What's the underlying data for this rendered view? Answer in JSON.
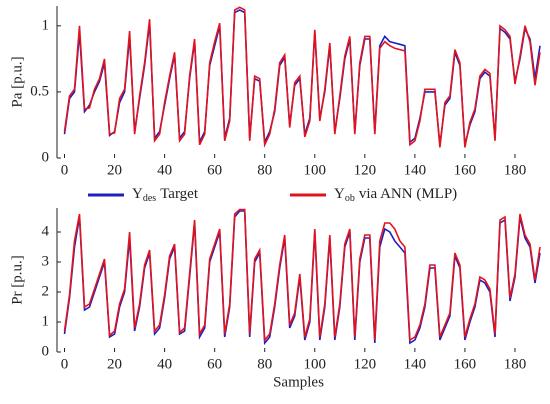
{
  "chart_data": [
    {
      "type": "line",
      "ylabel": "Pa [p.u.]",
      "xlim": [
        -3,
        190
      ],
      "ylim": [
        0,
        1.15
      ],
      "xticks": [
        0,
        20,
        40,
        60,
        80,
        100,
        120,
        140,
        160,
        180
      ],
      "yticks": [
        0,
        0.5,
        1
      ],
      "legend": "between",
      "x": [
        0,
        2,
        4,
        6,
        8,
        10,
        12,
        14,
        16,
        18,
        20,
        22,
        24,
        26,
        28,
        30,
        32,
        34,
        36,
        38,
        40,
        42,
        44,
        46,
        48,
        50,
        52,
        54,
        56,
        58,
        60,
        62,
        64,
        66,
        68,
        70,
        72,
        74,
        76,
        78,
        80,
        82,
        84,
        86,
        88,
        90,
        92,
        94,
        96,
        98,
        100,
        102,
        104,
        106,
        108,
        110,
        112,
        114,
        116,
        118,
        120,
        122,
        124,
        126,
        128,
        130,
        132,
        134,
        136,
        138,
        140,
        142,
        144,
        146,
        148,
        150,
        152,
        154,
        156,
        158,
        160,
        162,
        164,
        166,
        168,
        170,
        172,
        174,
        176,
        178,
        180,
        182,
        184,
        186,
        188,
        190
      ],
      "series": [
        {
          "symbol": "Y",
          "subscript": "des",
          "name": "Target",
          "color": "#1f1fbf",
          "values": [
            0.18,
            0.45,
            0.5,
            0.95,
            0.35,
            0.4,
            0.5,
            0.58,
            0.72,
            0.17,
            0.2,
            0.42,
            0.5,
            0.92,
            0.2,
            0.45,
            0.7,
            1.02,
            0.15,
            0.2,
            0.4,
            0.6,
            0.78,
            0.15,
            0.2,
            0.6,
            0.88,
            0.12,
            0.2,
            0.7,
            0.85,
            1.0,
            0.15,
            0.3,
            1.1,
            1.12,
            1.1,
            0.15,
            0.6,
            0.58,
            0.12,
            0.2,
            0.35,
            0.7,
            0.76,
            0.25,
            0.55,
            0.6,
            0.18,
            0.3,
            0.95,
            0.3,
            0.5,
            0.85,
            0.2,
            0.45,
            0.75,
            0.9,
            0.2,
            0.7,
            0.9,
            0.9,
            0.2,
            0.85,
            0.92,
            0.88,
            0.87,
            0.86,
            0.85,
            0.12,
            0.15,
            0.3,
            0.5,
            0.5,
            0.5,
            0.1,
            0.4,
            0.45,
            0.8,
            0.7,
            0.1,
            0.25,
            0.35,
            0.6,
            0.65,
            0.62,
            0.15,
            0.98,
            0.95,
            0.9,
            0.58,
            0.75,
            0.98,
            0.9,
            0.6,
            0.85
          ]
        },
        {
          "symbol": "Y",
          "subscript": "ob",
          "name": "via ANN (MLP)",
          "color": "#e0141e",
          "values": [
            0.2,
            0.47,
            0.52,
            1.0,
            0.37,
            0.38,
            0.52,
            0.6,
            0.75,
            0.18,
            0.19,
            0.45,
            0.52,
            0.96,
            0.18,
            0.47,
            0.72,
            1.05,
            0.13,
            0.18,
            0.42,
            0.62,
            0.8,
            0.13,
            0.18,
            0.62,
            0.9,
            0.1,
            0.18,
            0.72,
            0.88,
            1.02,
            0.13,
            0.28,
            1.12,
            1.14,
            1.12,
            0.13,
            0.62,
            0.6,
            0.1,
            0.18,
            0.37,
            0.72,
            0.78,
            0.23,
            0.57,
            0.62,
            0.16,
            0.28,
            0.97,
            0.28,
            0.52,
            0.87,
            0.18,
            0.47,
            0.77,
            0.92,
            0.18,
            0.72,
            0.92,
            0.92,
            0.18,
            0.83,
            0.88,
            0.85,
            0.83,
            0.82,
            0.81,
            0.1,
            0.13,
            0.28,
            0.52,
            0.52,
            0.52,
            0.08,
            0.42,
            0.47,
            0.82,
            0.72,
            0.08,
            0.27,
            0.37,
            0.62,
            0.67,
            0.64,
            0.13,
            1.0,
            0.97,
            0.92,
            0.56,
            0.77,
            1.0,
            0.88,
            0.55,
            0.8
          ]
        }
      ]
    },
    {
      "type": "line",
      "xlabel": "Samples",
      "ylabel": "Pr [p.u.]",
      "xlim": [
        -3,
        190
      ],
      "ylim": [
        0,
        4.8
      ],
      "xticks": [
        0,
        20,
        40,
        60,
        80,
        100,
        120,
        140,
        160,
        180
      ],
      "yticks": [
        0,
        1,
        2,
        3,
        4
      ],
      "x": [
        0,
        2,
        4,
        6,
        8,
        10,
        12,
        14,
        16,
        18,
        20,
        22,
        24,
        26,
        28,
        30,
        32,
        34,
        36,
        38,
        40,
        42,
        44,
        46,
        48,
        50,
        52,
        54,
        56,
        58,
        60,
        62,
        64,
        66,
        68,
        70,
        72,
        74,
        76,
        78,
        80,
        82,
        84,
        86,
        88,
        90,
        92,
        94,
        96,
        98,
        100,
        102,
        104,
        106,
        108,
        110,
        112,
        114,
        116,
        118,
        120,
        122,
        124,
        126,
        128,
        130,
        132,
        134,
        136,
        138,
        140,
        142,
        144,
        146,
        148,
        150,
        152,
        154,
        156,
        158,
        160,
        162,
        164,
        166,
        168,
        170,
        172,
        174,
        176,
        178,
        180,
        182,
        184,
        186,
        188,
        190
      ],
      "series": [
        {
          "color": "#1f1fbf",
          "values": [
            0.6,
            1.8,
            3.5,
            4.5,
            1.4,
            1.5,
            2.0,
            2.5,
            3.0,
            0.5,
            0.6,
            1.5,
            2.0,
            3.8,
            0.7,
            1.5,
            2.8,
            3.3,
            0.6,
            0.8,
            1.8,
            3.1,
            3.5,
            0.6,
            0.7,
            2.5,
            4.3,
            0.5,
            0.8,
            3.0,
            3.5,
            4.0,
            0.5,
            1.5,
            4.5,
            4.7,
            4.7,
            0.5,
            3.0,
            3.3,
            0.3,
            0.5,
            1.5,
            2.8,
            3.8,
            0.8,
            1.2,
            2.5,
            0.4,
            1.0,
            4.0,
            0.4,
            1.5,
            3.8,
            0.4,
            1.5,
            3.5,
            4.0,
            0.4,
            3.0,
            3.8,
            3.8,
            0.3,
            3.5,
            4.1,
            4.0,
            3.7,
            3.5,
            3.3,
            0.3,
            0.4,
            0.8,
            1.5,
            2.8,
            2.8,
            0.4,
            0.8,
            1.2,
            3.2,
            2.8,
            0.4,
            1.0,
            1.5,
            2.4,
            2.3,
            2.0,
            0.5,
            4.3,
            4.4,
            1.7,
            2.5,
            4.5,
            3.8,
            3.5,
            2.3,
            3.3
          ]
        },
        {
          "color": "#e0141e",
          "values": [
            0.7,
            1.9,
            3.7,
            4.6,
            1.5,
            1.6,
            2.1,
            2.6,
            3.1,
            0.55,
            0.7,
            1.6,
            2.1,
            4.0,
            0.8,
            1.6,
            2.9,
            3.4,
            0.7,
            0.9,
            1.9,
            3.2,
            3.6,
            0.65,
            0.8,
            2.6,
            4.4,
            0.6,
            0.9,
            3.1,
            3.6,
            4.1,
            0.6,
            1.6,
            4.6,
            4.75,
            4.75,
            0.6,
            3.1,
            3.4,
            0.4,
            0.6,
            1.6,
            2.9,
            3.9,
            0.9,
            1.3,
            2.6,
            0.5,
            1.1,
            4.1,
            0.5,
            1.6,
            3.9,
            0.5,
            1.6,
            3.6,
            4.1,
            0.5,
            3.1,
            3.9,
            3.9,
            0.4,
            3.7,
            4.3,
            4.3,
            4.1,
            3.7,
            3.5,
            0.4,
            0.5,
            0.9,
            1.6,
            2.9,
            2.9,
            0.5,
            0.9,
            1.3,
            3.3,
            2.9,
            0.5,
            1.1,
            1.6,
            2.5,
            2.4,
            2.1,
            0.6,
            4.4,
            4.5,
            1.8,
            2.6,
            4.6,
            3.9,
            3.6,
            2.4,
            3.5
          ]
        }
      ]
    }
  ]
}
